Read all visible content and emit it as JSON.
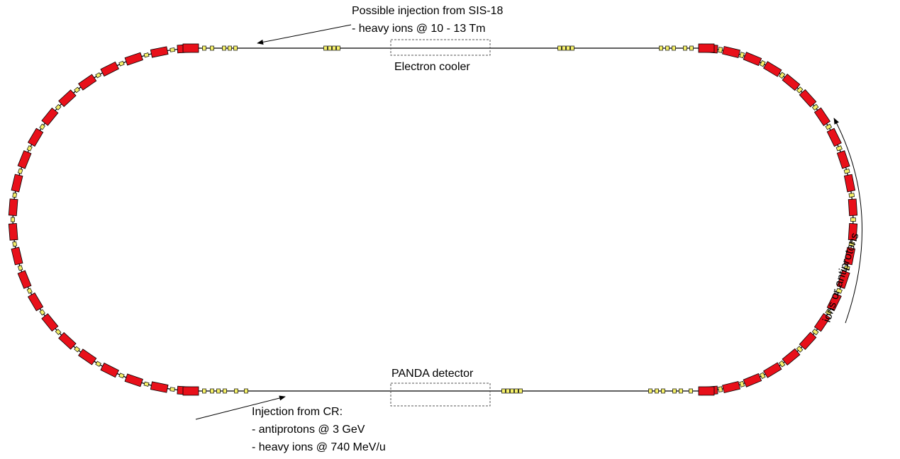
{
  "colors": {
    "dipole": "#e8101a",
    "dipole_stroke": "#000000",
    "quad": "#f5f06a",
    "beamline": "#000000",
    "box_dash": "#555555"
  },
  "labels": {
    "sis18_injection": [
      "Possible injection from SIS-18",
      "- heavy ions @ 10 - 13 Tm"
    ],
    "electron_cooler": "Electron cooler",
    "panda_detector": "PANDA detector",
    "cr_injection": [
      "Injection from CR:",
      "- antiprotons @ 3 GeV",
      "- heavy ions @ 740 MeV/u"
    ],
    "beam_direction": "ions or antiprotons"
  }
}
